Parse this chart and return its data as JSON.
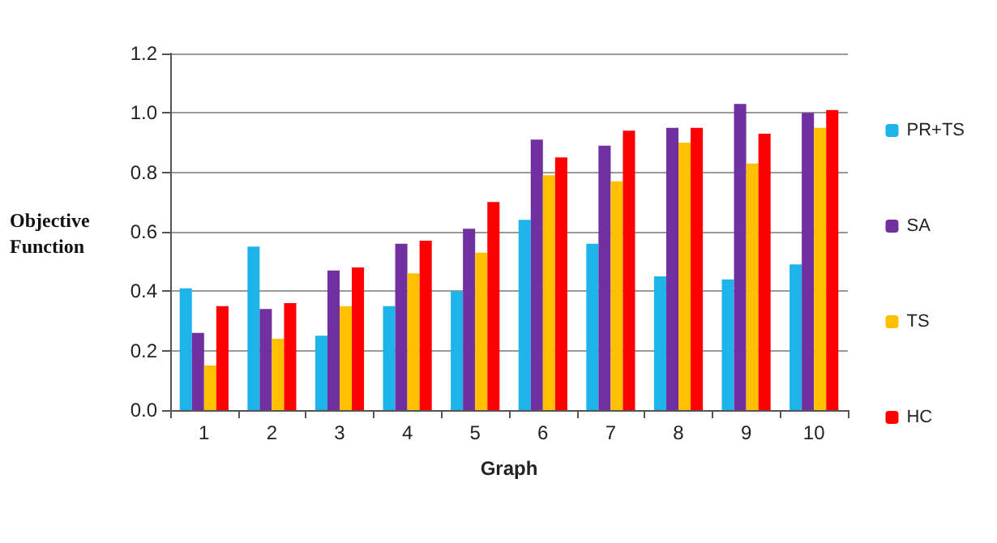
{
  "chart_data": {
    "type": "bar",
    "xlabel": "Graph",
    "ylabel": "Objective\nFunction",
    "categories": [
      "1",
      "2",
      "3",
      "4",
      "5",
      "6",
      "7",
      "8",
      "9",
      "10"
    ],
    "series": [
      {
        "name": "PR+TS",
        "color": "#1eb4ea",
        "values": [
          0.41,
          0.55,
          0.25,
          0.35,
          0.4,
          0.64,
          0.56,
          0.45,
          0.44,
          0.49
        ]
      },
      {
        "name": "SA",
        "color": "#7030a0",
        "values": [
          0.26,
          0.34,
          0.47,
          0.56,
          0.61,
          0.91,
          0.89,
          0.95,
          1.03,
          1.0
        ]
      },
      {
        "name": "TS",
        "color": "#ffc000",
        "values": [
          0.15,
          0.24,
          0.35,
          0.46,
          0.53,
          0.79,
          0.77,
          0.9,
          0.83,
          0.95
        ]
      },
      {
        "name": "HC",
        "color": "#ff0000",
        "values": [
          0.35,
          0.36,
          0.48,
          0.57,
          0.7,
          0.85,
          0.94,
          0.95,
          0.93,
          1.01
        ]
      }
    ],
    "ylim": [
      0,
      1.2
    ],
    "yticks": [
      {
        "value": 0,
        "label": "0.0"
      },
      0.2,
      0.4,
      0.6,
      0.8,
      {
        "value": 1,
        "label": "1.0"
      },
      1.2
    ],
    "grid": "y",
    "legend": "right"
  }
}
